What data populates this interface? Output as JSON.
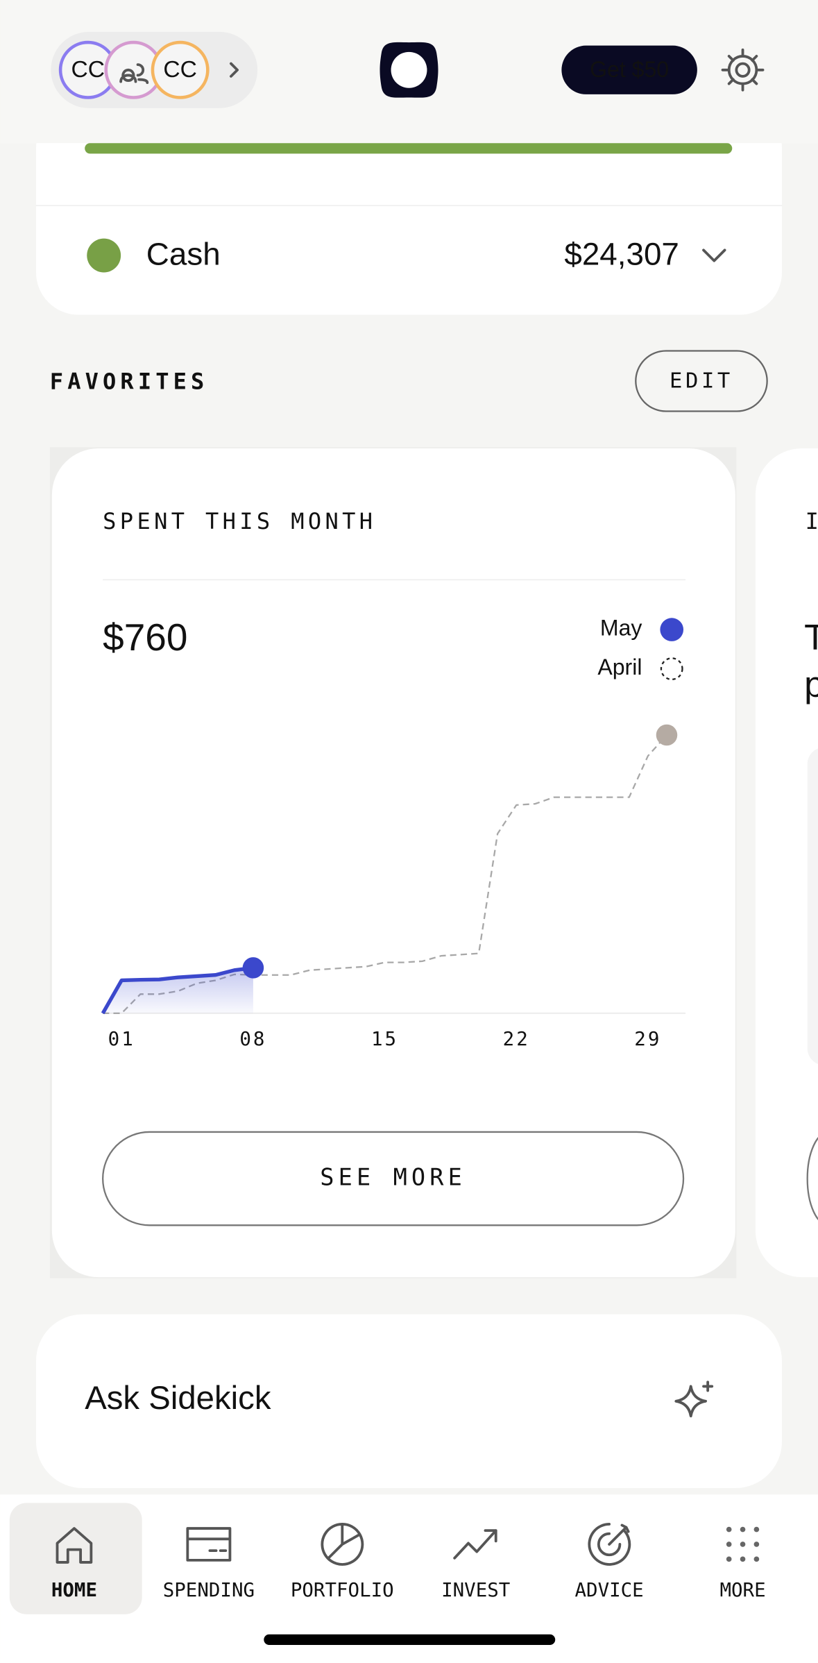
{
  "header": {
    "avatars": [
      "CC",
      "CC"
    ],
    "referral_button": "Get $50"
  },
  "accounts": {
    "cash": {
      "label": "Cash",
      "amount": "$24,307"
    }
  },
  "favorites": {
    "title": "FAVORITES",
    "edit": "EDIT"
  },
  "spent_card": {
    "title": "SPENT THIS MONTH",
    "amount": "$760",
    "see_more": "SEE MORE"
  },
  "next_card": {
    "title_fragment": "I",
    "text_fragments": [
      "T",
      "p"
    ]
  },
  "sidekick": {
    "label": "Ask Sidekick"
  },
  "nav": {
    "items": [
      "HOME",
      "SPENDING",
      "PORTFOLIO",
      "INVEST",
      "ADVICE",
      "MORE"
    ]
  },
  "chart_data": {
    "type": "line",
    "x": [
      0,
      1,
      2,
      3,
      4,
      5,
      6,
      7,
      8,
      9,
      10,
      11,
      12,
      13,
      14,
      15,
      16,
      17,
      18,
      19,
      20,
      21,
      22,
      23,
      24,
      25,
      26,
      27,
      28,
      29,
      30
    ],
    "series": [
      {
        "name": "May",
        "color": "#3b48cc",
        "dashed": false,
        "values": [
          0,
          550,
          560,
          565,
          600,
          620,
          640,
          720,
          760,
          null,
          null,
          null,
          null,
          null,
          null,
          null,
          null,
          null,
          null,
          null,
          null,
          null,
          null,
          null,
          null,
          null,
          null,
          null,
          null,
          null,
          null
        ]
      },
      {
        "name": "April",
        "color": "#a8a8a8",
        "dashed": true,
        "end_color": "#b5aba3",
        "values": [
          0,
          0,
          320,
          320,
          370,
          500,
          550,
          650,
          640,
          640,
          640,
          720,
          740,
          760,
          780,
          850,
          850,
          870,
          960,
          980,
          1000,
          3000,
          3480,
          3500,
          3610,
          3610,
          3610,
          3610,
          3610,
          4300,
          4650
        ]
      }
    ],
    "xlim": [
      0,
      31
    ],
    "ylim": [
      0,
      4800
    ],
    "xticks": [
      {
        "value": 1,
        "label": "01"
      },
      {
        "value": 8,
        "label": "08"
      },
      {
        "value": 15,
        "label": "15"
      },
      {
        "value": 22,
        "label": "22"
      },
      {
        "value": 29,
        "label": "29"
      }
    ]
  }
}
